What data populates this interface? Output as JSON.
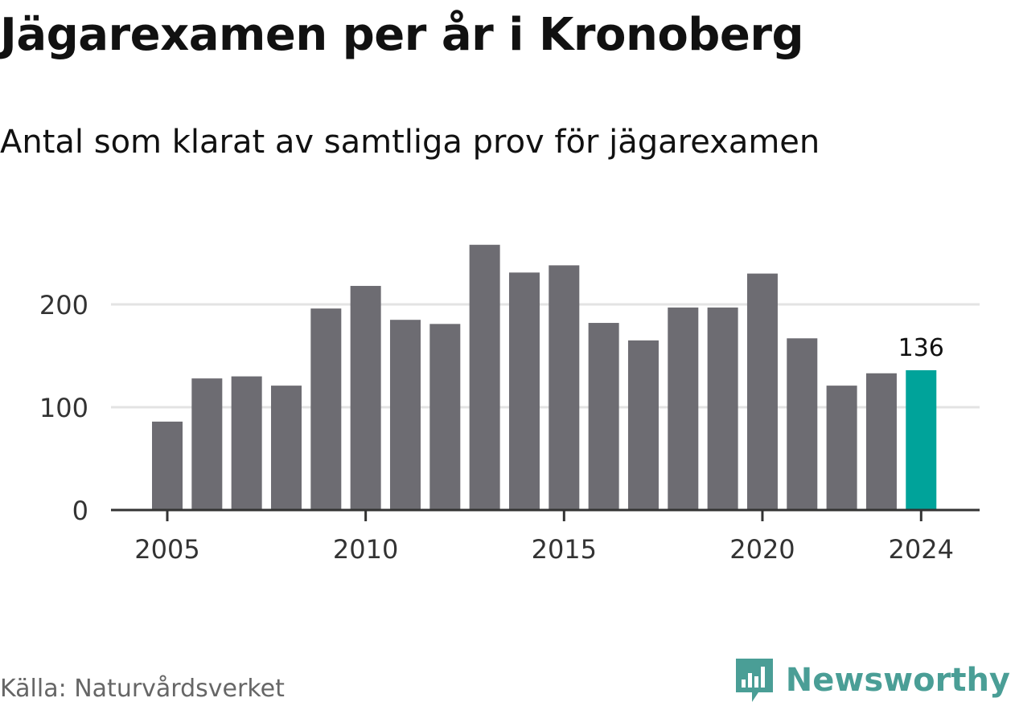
{
  "title": "Jägarexamen per år i Kronoberg",
  "subtitle": "Antal som klarat av samtliga prov för jägarexamen",
  "source": "Källa: Naturvårdsverket",
  "brand": "Newsworthy",
  "colors": {
    "bar": "#6d6c72",
    "highlight": "#00a39a",
    "grid": "#e3e3e3",
    "axis": "#333333",
    "brand": "#4a9e96"
  },
  "chart_data": {
    "type": "bar",
    "title": "Jägarexamen per år i Kronoberg",
    "subtitle": "Antal som klarat av samtliga prov för jägarexamen",
    "categories": [
      "2005",
      "2006",
      "2007",
      "2008",
      "2009",
      "2010",
      "2011",
      "2012",
      "2013",
      "2014",
      "2015",
      "2016",
      "2017",
      "2018",
      "2019",
      "2020",
      "2021",
      "2022",
      "2023",
      "2024"
    ],
    "values": [
      86,
      128,
      130,
      121,
      196,
      218,
      185,
      181,
      258,
      231,
      238,
      182,
      165,
      197,
      197,
      230,
      167,
      121,
      133,
      136
    ],
    "highlight_index": 19,
    "highlight_label": "136",
    "x_tick_labels": [
      "2005",
      "2010",
      "2015",
      "2020",
      "2024"
    ],
    "y_ticks": [
      0,
      100,
      200
    ],
    "ylim": [
      0,
      266
    ],
    "xlabel": "",
    "ylabel": "",
    "grid": true,
    "legend": "none"
  }
}
